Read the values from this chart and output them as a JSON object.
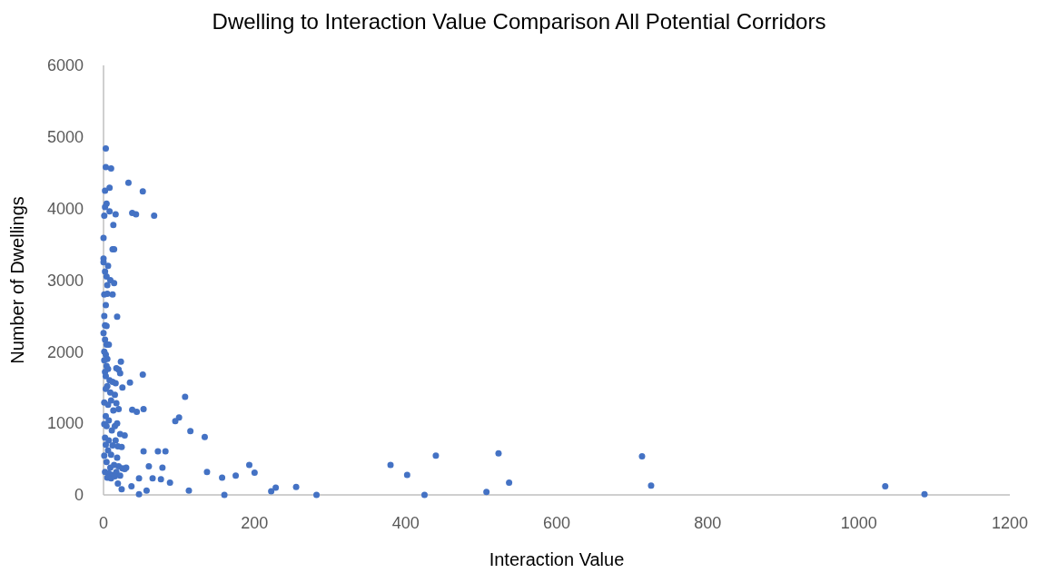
{
  "chart_data": {
    "type": "scatter",
    "title": "Dwelling to Interaction Value Comparison All Potential Corridors",
    "xlabel": "Interaction Value",
    "ylabel": "Number of Dwellings",
    "xlim": [
      0,
      1200
    ],
    "ylim": [
      0,
      6000
    ],
    "xticks": [
      0,
      200,
      400,
      600,
      800,
      1000,
      1200
    ],
    "yticks": [
      0,
      1000,
      2000,
      3000,
      4000,
      5000,
      6000
    ],
    "marker": "circle",
    "series": [
      {
        "color": "#4472c4",
        "x": [
          1035,
          1087,
          713,
          725,
          523,
          537,
          507,
          440,
          402,
          380,
          425,
          282,
          255,
          228,
          222,
          200,
          193,
          175,
          157,
          160,
          137,
          134,
          115,
          113,
          108,
          100,
          95,
          88,
          82,
          78,
          76,
          72,
          65,
          60,
          57,
          53,
          53,
          52,
          47,
          47,
          44,
          38,
          37,
          35,
          33,
          43,
          52,
          67,
          38,
          28,
          25,
          23,
          22,
          20,
          18,
          3,
          3,
          10,
          8,
          2,
          16,
          8,
          2,
          4,
          1,
          0,
          13,
          12,
          14,
          0,
          0,
          6,
          2,
          4,
          9,
          14,
          5,
          1,
          5,
          12,
          3,
          1,
          2,
          4,
          0,
          2,
          4,
          7,
          1,
          3,
          5,
          1,
          4,
          6,
          2,
          3,
          17,
          8,
          12,
          16,
          5,
          3,
          9,
          15,
          1,
          6,
          10,
          17,
          20,
          13,
          3,
          7,
          15,
          1,
          4,
          18,
          11,
          22,
          2,
          7,
          16,
          3,
          12,
          19,
          24,
          6,
          1,
          10,
          18,
          4,
          14,
          9,
          20,
          25,
          28,
          2,
          7,
          12,
          17,
          22,
          5,
          10,
          15,
          19,
          24,
          30
        ],
        "values": [
          120,
          10,
          540,
          130,
          580,
          170,
          40,
          550,
          280,
          420,
          0,
          0,
          110,
          100,
          50,
          310,
          420,
          270,
          240,
          0,
          320,
          810,
          890,
          60,
          1370,
          1080,
          1030,
          170,
          610,
          380,
          220,
          610,
          230,
          400,
          60,
          610,
          1200,
          1680,
          230,
          10,
          1160,
          1190,
          120,
          1570,
          4360,
          3920,
          4240,
          3900,
          3940,
          830,
          1500,
          1860,
          1700,
          1750,
          2490,
          4840,
          4580,
          4560,
          4290,
          4250,
          3920,
          3960,
          4020,
          4070,
          3900,
          3590,
          3770,
          3430,
          3430,
          3300,
          3250,
          3200,
          3120,
          3050,
          3000,
          2960,
          2930,
          2800,
          2810,
          2800,
          2650,
          2500,
          2370,
          2360,
          2260,
          2170,
          2100,
          2100,
          2000,
          1960,
          1900,
          1880,
          1800,
          1760,
          1720,
          1660,
          1770,
          1600,
          1580,
          1560,
          1520,
          1480,
          1430,
          1400,
          1290,
          1260,
          1320,
          1280,
          1200,
          1180,
          1100,
          1040,
          960,
          990,
          960,
          1000,
          900,
          850,
          800,
          760,
          760,
          700,
          690,
          680,
          670,
          620,
          550,
          560,
          520,
          460,
          420,
          380,
          400,
          370,
          360,
          320,
          300,
          280,
          320,
          270,
          240,
          230,
          260,
          160,
          80,
          380
        ]
      }
    ]
  }
}
